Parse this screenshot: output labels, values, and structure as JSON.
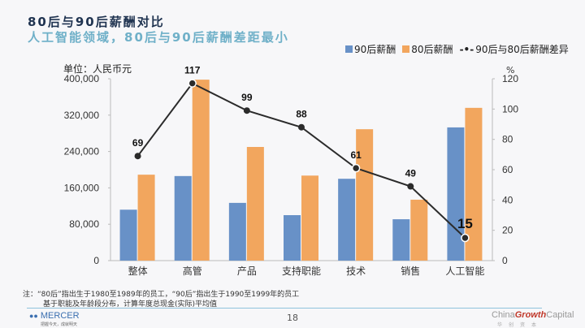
{
  "header": {
    "title": "80后与90后薪酬对比",
    "subtitle": "人工智能领域，80后与90后薪酬差距最小"
  },
  "legend": {
    "items": [
      {
        "label": "90后薪酬",
        "color": "#6891c7",
        "kind": "bar"
      },
      {
        "label": "80后薪酬",
        "color": "#f2a65e",
        "kind": "bar"
      },
      {
        "label": "90后与80后薪酬差异",
        "color": "#2b2b2b",
        "kind": "line",
        "glyph": "-•-"
      }
    ]
  },
  "unit_label": "单位：人民币元",
  "right_axis_unit": "%",
  "chart_data": {
    "type": "bar",
    "title": "80后与90后薪酬对比",
    "categories": [
      "整体",
      "高管",
      "产品",
      "支持职能",
      "技术",
      "销售",
      "人工智能"
    ],
    "series": [
      {
        "name": "90后薪酬",
        "axis": "left",
        "type": "bar",
        "color": "#6891c7",
        "values": [
          112000,
          186000,
          127000,
          100000,
          180000,
          91000,
          293000
        ]
      },
      {
        "name": "80后薪酬",
        "axis": "left",
        "type": "bar",
        "color": "#f2a65e",
        "values": [
          189000,
          398000,
          250000,
          187000,
          289000,
          134000,
          336000
        ]
      },
      {
        "name": "90后与80后薪酬差异",
        "axis": "right",
        "type": "line",
        "color": "#2b2b2b",
        "values": [
          69,
          117,
          99,
          88,
          61,
          49,
          15
        ],
        "labels": [
          "69",
          "117",
          "99",
          "88",
          "61",
          "49",
          "15"
        ]
      }
    ],
    "ylabel": "单位：人民币元",
    "ylim": [
      0,
      400000
    ],
    "yticks": [
      "0",
      "80,000",
      "160,000",
      "240,000",
      "320,000",
      "400,000"
    ],
    "y2label": "%",
    "y2lim": [
      0,
      120
    ],
    "y2ticks": [
      "0",
      "20",
      "40",
      "60",
      "80",
      "100",
      "120"
    ],
    "grid": false,
    "legend_position": "top-right"
  },
  "notes": {
    "line1": "注：“80后”指出生于1980至1989年的员工，“90后”指出生于1990至1999年的员工",
    "line2": "基于职能及年龄段分布，计算年度总现金(实际)平均值"
  },
  "footer": {
    "logo": "MERCER",
    "logo_tagline": "把握今天，成就明天",
    "page_number": "18",
    "partner_pre": "China",
    "partner_mid": "Growth",
    "partner_post": "Capital",
    "partner_tagline": "华创资本"
  }
}
